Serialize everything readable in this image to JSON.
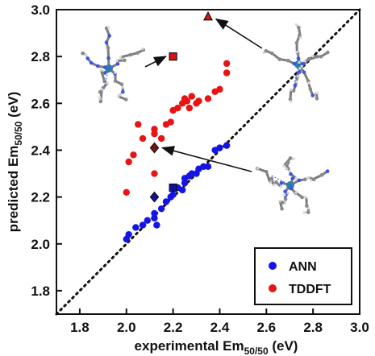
{
  "chart_data": {
    "type": "scatter",
    "title": "",
    "xlabel_main": "experimental Em",
    "xlabel_sub": "50/50",
    "xlabel_unit": " (eV)",
    "ylabel_main": "predicted Em",
    "ylabel_sub": "50/50",
    "ylabel_unit": " (eV)",
    "xlim": [
      1.7,
      3.0
    ],
    "ylim": [
      1.7,
      3.0
    ],
    "xticks": [
      "1.8",
      "2.0",
      "2.2",
      "2.4",
      "2.6",
      "2.8",
      "3.0"
    ],
    "yticks": [
      "1.8",
      "2.0",
      "2.2",
      "2.4",
      "2.6",
      "2.8",
      "3.0"
    ],
    "grid": false,
    "diagonal_reference": "dotted y = x",
    "legend_position": "bottom-right",
    "series": [
      {
        "name": "ANN",
        "color": "#1414e6",
        "points": [
          [
            2.0,
            2.02
          ],
          [
            2.01,
            2.04
          ],
          [
            2.04,
            2.07
          ],
          [
            2.07,
            2.08
          ],
          [
            2.09,
            2.1
          ],
          [
            2.12,
            2.11
          ],
          [
            2.12,
            2.13
          ],
          [
            2.13,
            2.08
          ],
          [
            2.15,
            2.15
          ],
          [
            2.17,
            2.18
          ],
          [
            2.19,
            2.2
          ],
          [
            2.2,
            2.21
          ],
          [
            2.22,
            2.24
          ],
          [
            2.24,
            2.23
          ],
          [
            2.25,
            2.26
          ],
          [
            2.25,
            2.28
          ],
          [
            2.27,
            2.29
          ],
          [
            2.28,
            2.3
          ],
          [
            2.3,
            2.3
          ],
          [
            2.31,
            2.32
          ],
          [
            2.33,
            2.33
          ],
          [
            2.35,
            2.33
          ],
          [
            2.38,
            2.4
          ],
          [
            2.4,
            2.41
          ],
          [
            2.43,
            2.42
          ]
        ]
      },
      {
        "name": "TDDFT",
        "color": "#e81414",
        "points": [
          [
            2.0,
            2.22
          ],
          [
            2.01,
            2.35
          ],
          [
            2.03,
            2.38
          ],
          [
            2.05,
            2.51
          ],
          [
            2.07,
            2.45
          ],
          [
            2.12,
            2.3
          ],
          [
            2.12,
            2.47
          ],
          [
            2.12,
            2.49
          ],
          [
            2.15,
            2.45
          ],
          [
            2.17,
            2.51
          ],
          [
            2.19,
            2.52
          ],
          [
            2.2,
            2.57
          ],
          [
            2.22,
            2.58
          ],
          [
            2.24,
            2.6
          ],
          [
            2.25,
            2.62
          ],
          [
            2.26,
            2.61
          ],
          [
            2.27,
            2.58
          ],
          [
            2.28,
            2.63
          ],
          [
            2.3,
            2.6
          ],
          [
            2.31,
            2.61
          ],
          [
            2.35,
            2.62
          ],
          [
            2.38,
            2.65
          ],
          [
            2.4,
            2.66
          ],
          [
            2.43,
            2.73
          ],
          [
            2.43,
            2.77
          ]
        ]
      }
    ],
    "highlighted_markers": [
      {
        "shape": "square",
        "x": 2.2,
        "y": 2.8,
        "color": "#d81414"
      },
      {
        "shape": "triangle",
        "x": 2.35,
        "y": 2.97,
        "color": "#d81414"
      },
      {
        "shape": "diamond",
        "x": 2.12,
        "y": 2.41,
        "color": "#7a1414"
      },
      {
        "shape": "diamond",
        "x": 2.12,
        "y": 2.2,
        "color": "#10109a"
      },
      {
        "shape": "square",
        "x": 2.2,
        "y": 2.24,
        "color": "#10109a"
      }
    ],
    "molecule_insets": [
      {
        "name": "molecule-inset-square",
        "points_to": [
          2.2,
          2.8
        ]
      },
      {
        "name": "molecule-inset-triangle",
        "points_to": [
          2.35,
          2.97
        ]
      },
      {
        "name": "molecule-inset-diamond",
        "points_to": [
          2.12,
          2.41
        ]
      }
    ]
  }
}
